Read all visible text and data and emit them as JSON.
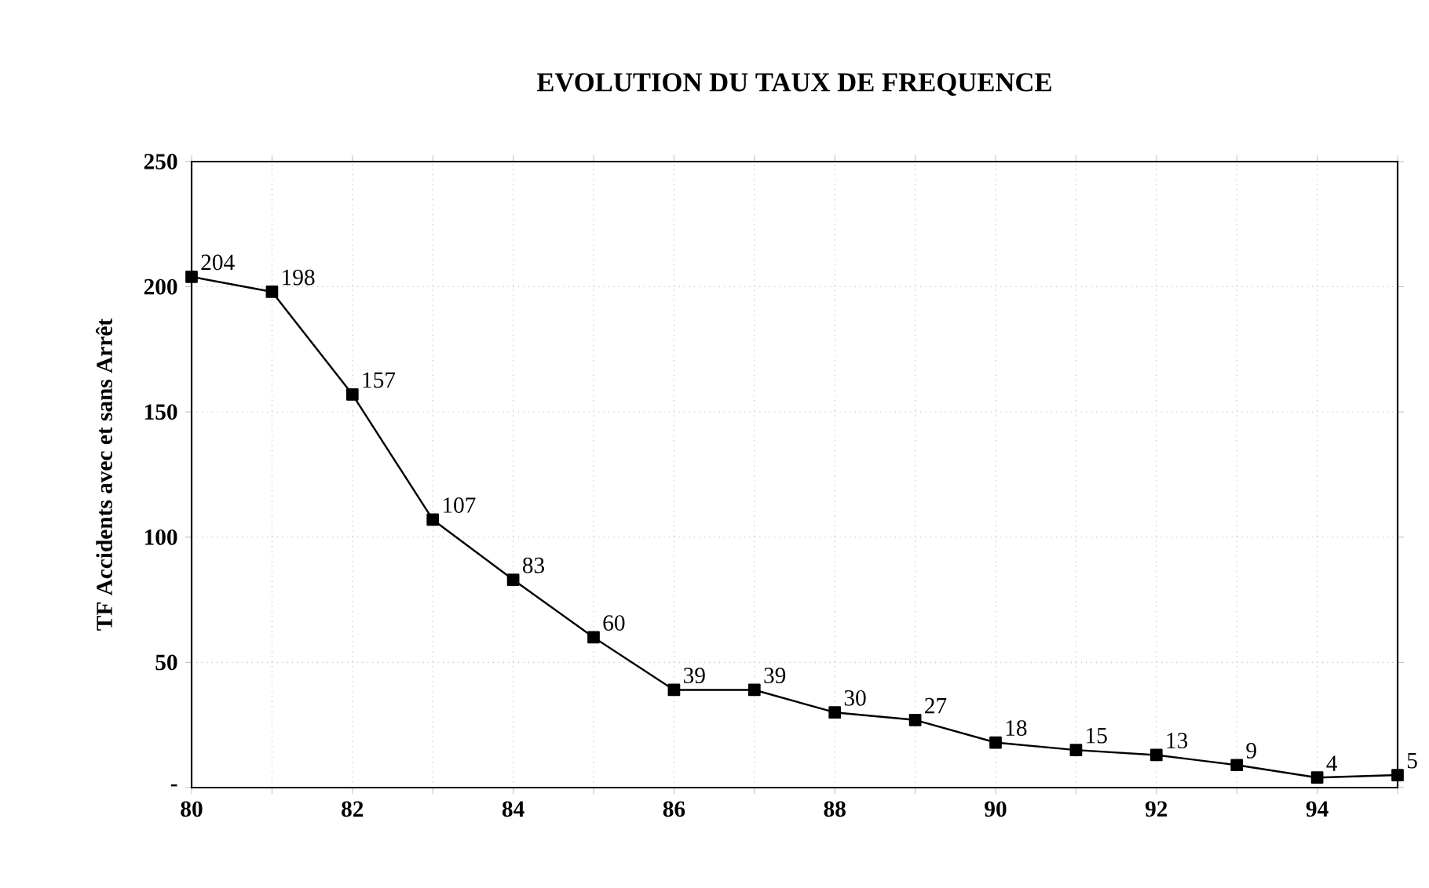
{
  "chart_data": {
    "type": "line",
    "title": "EVOLUTION DU TAUX DE FREQUENCE",
    "ylabel": "TF Accidents avec et sans Arrêt",
    "x": [
      80,
      81,
      82,
      83,
      84,
      85,
      86,
      87,
      88,
      89,
      90,
      91,
      92,
      93,
      94,
      95
    ],
    "values": [
      204,
      198,
      157,
      107,
      83,
      60,
      39,
      39,
      30,
      27,
      18,
      15,
      13,
      9,
      4,
      5
    ],
    "color": "#000000",
    "marker": "square",
    "line_style": "solid",
    "data_labels": true,
    "grid": true,
    "xlim": [
      80,
      95
    ],
    "xticks": [
      80,
      {
        "value": 81,
        "label": null
      },
      82,
      {
        "value": 83,
        "label": null
      },
      84,
      {
        "value": 85,
        "label": null
      },
      86,
      {
        "value": 87,
        "label": null
      },
      88,
      {
        "value": 89,
        "label": null
      },
      90,
      {
        "value": 91,
        "label": null
      },
      92,
      {
        "value": 93,
        "label": null
      },
      94,
      {
        "value": 95,
        "label": null
      }
    ],
    "ylim": [
      0,
      250
    ],
    "yticks": [
      {
        "value": 0,
        "label": "-"
      },
      50,
      100,
      150,
      200,
      250
    ]
  }
}
